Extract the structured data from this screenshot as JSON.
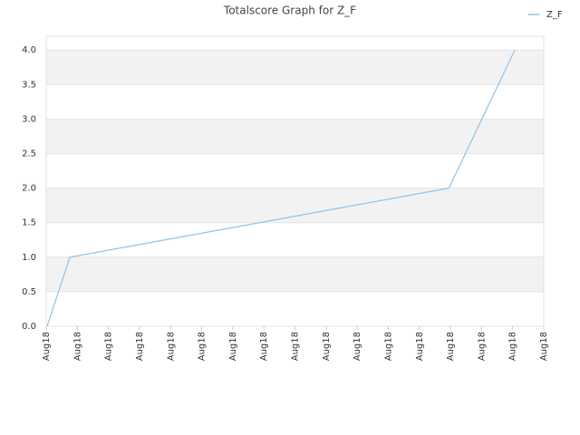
{
  "chart_data": {
    "type": "line",
    "title": "Totalscore Graph for Z_F",
    "x": [
      0.03,
      0.76,
      12.95,
      15.07
    ],
    "series": [
      {
        "name": "Z_F",
        "color": "#8fc1ea",
        "values": [
          0,
          1,
          2,
          4
        ]
      }
    ],
    "xlim": [
      0,
      16
    ],
    "xticks": [
      {
        "value": 0,
        "label": "Aug18"
      },
      {
        "value": 1,
        "label": "Aug18"
      },
      {
        "value": 2,
        "label": "Aug18"
      },
      {
        "value": 3,
        "label": "Aug18"
      },
      {
        "value": 4,
        "label": "Aug18"
      },
      {
        "value": 5,
        "label": "Aug18"
      },
      {
        "value": 6,
        "label": "Aug18"
      },
      {
        "value": 7,
        "label": "Aug18"
      },
      {
        "value": 8,
        "label": "Aug18"
      },
      {
        "value": 9,
        "label": "Aug18"
      },
      {
        "value": 10,
        "label": "Aug18"
      },
      {
        "value": 11,
        "label": "Aug18"
      },
      {
        "value": 12,
        "label": "Aug18"
      },
      {
        "value": 13,
        "label": "Aug18"
      },
      {
        "value": 14,
        "label": "Aug18"
      },
      {
        "value": 15,
        "label": "Aug18"
      },
      {
        "value": 16,
        "label": "Aug18"
      }
    ],
    "ylim": [
      0,
      4.2
    ],
    "yticks": [
      {
        "value": 0,
        "label": "0.0"
      },
      {
        "value": 0.5,
        "label": "0.5"
      },
      {
        "value": 1,
        "label": "1.0"
      },
      {
        "value": 1.5,
        "label": "1.5"
      },
      {
        "value": 2,
        "label": "2.0"
      },
      {
        "value": 2.5,
        "label": "2.5"
      },
      {
        "value": 3,
        "label": "3.0"
      },
      {
        "value": 3.5,
        "label": "3.5"
      },
      {
        "value": 4,
        "label": "4.0"
      }
    ],
    "grid": true,
    "legend": "top-right"
  }
}
